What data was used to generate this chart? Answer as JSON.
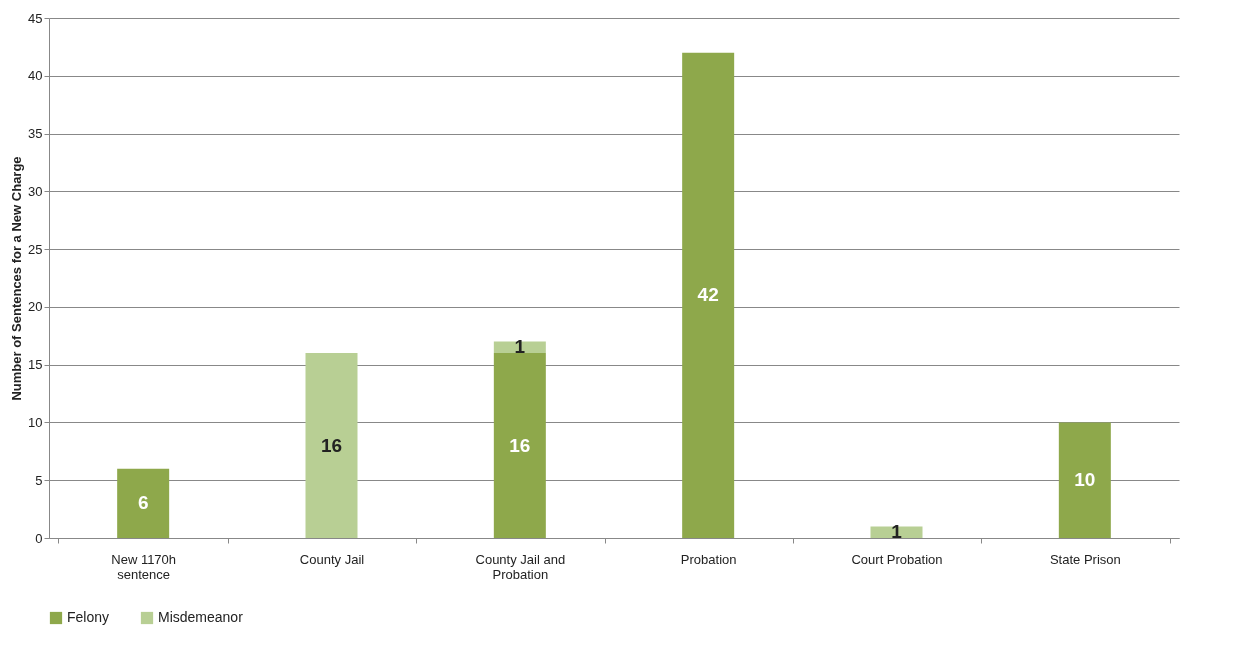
{
  "chart_data": {
    "type": "bar",
    "stacked": true,
    "ylabel": "Number of Sentences for a New Charge",
    "categories": [
      "New 1170h sentence",
      "County Jail",
      "County Jail and Probation",
      "Probation",
      "Court Probation",
      "State Prison"
    ],
    "series": [
      {
        "name": "Felony",
        "color": "#8ea84b",
        "values": [
          6,
          null,
          16,
          42,
          null,
          10
        ]
      },
      {
        "name": "Misdemeanor",
        "color": "#b8cf94",
        "values": [
          null,
          16,
          1,
          null,
          1,
          null
        ]
      }
    ],
    "ylim": [
      0,
      45
    ],
    "yticks": [
      0,
      5,
      10,
      15,
      20,
      25,
      30,
      35,
      40,
      45
    ],
    "grid": "y",
    "legend": "bottom",
    "data_labels": true
  }
}
